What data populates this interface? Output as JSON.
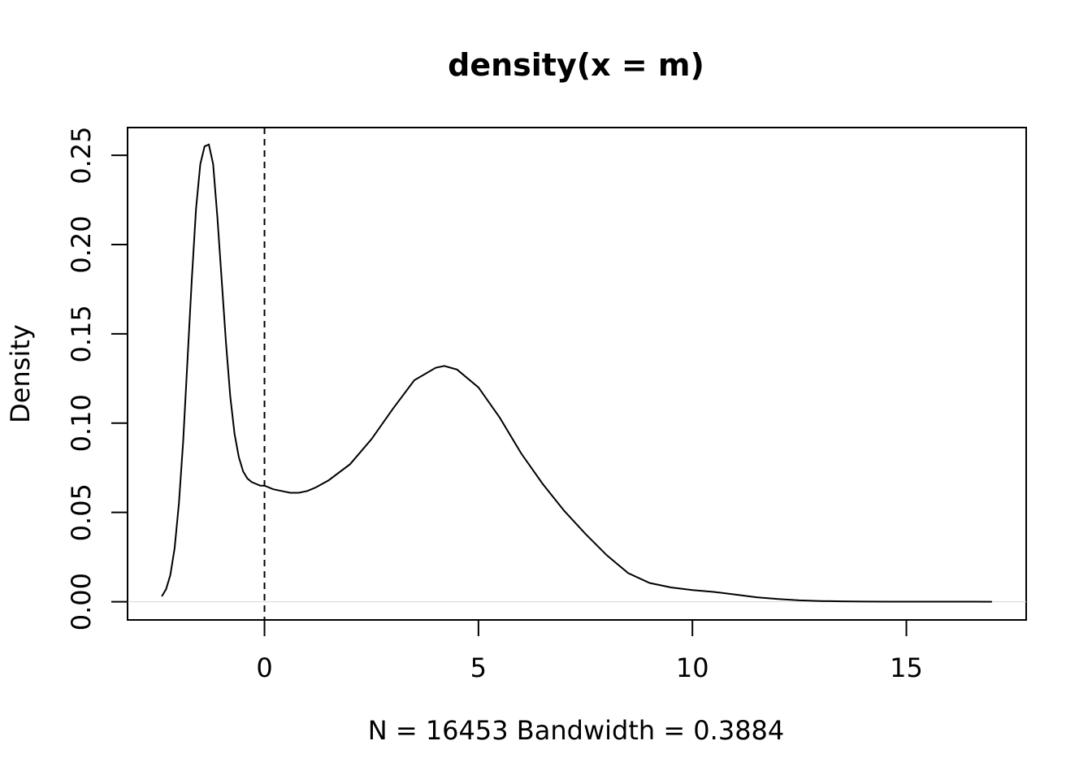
{
  "chart_data": {
    "type": "line",
    "title": "density(x = m)",
    "xlabel": "N = 16453   Bandwidth = 0.3884",
    "ylabel": "Density",
    "xlim": [
      -3.2,
      17.8
    ],
    "ylim": [
      -0.0102,
      0.2655
    ],
    "x_ticks": [
      0,
      5,
      10,
      15
    ],
    "x_tick_labels": [
      "0",
      "5",
      "10",
      "15"
    ],
    "y_ticks": [
      0.0,
      0.05,
      0.1,
      0.15,
      0.2,
      0.25
    ],
    "y_tick_labels": [
      "0.00",
      "0.05",
      "0.10",
      "0.15",
      "0.20",
      "0.25"
    ],
    "grid": false,
    "reference_lines": [
      {
        "type": "vertical",
        "x": 0,
        "style": "dashed"
      },
      {
        "type": "horizontal",
        "y": 0,
        "style": "solid-light"
      }
    ],
    "series": [
      {
        "color": "#000000",
        "x": [
          -2.4,
          -2.3,
          -2.2,
          -2.1,
          -2.0,
          -1.9,
          -1.8,
          -1.7,
          -1.6,
          -1.5,
          -1.4,
          -1.3,
          -1.2,
          -1.1,
          -1.0,
          -0.9,
          -0.8,
          -0.7,
          -0.6,
          -0.5,
          -0.4,
          -0.3,
          -0.2,
          -0.1,
          0.0,
          0.2,
          0.4,
          0.6,
          0.8,
          1.0,
          1.2,
          1.5,
          2.0,
          2.5,
          3.0,
          3.5,
          4.0,
          4.2,
          4.5,
          5.0,
          5.5,
          6.0,
          6.5,
          7.0,
          7.5,
          8.0,
          8.5,
          9.0,
          9.5,
          10.0,
          10.5,
          11.0,
          11.5,
          12.0,
          12.5,
          13.0,
          13.5,
          14.0,
          14.5,
          15.0,
          15.5,
          16.0,
          16.5,
          17.0
        ],
        "y": [
          0.003,
          0.007,
          0.015,
          0.03,
          0.055,
          0.09,
          0.135,
          0.18,
          0.22,
          0.245,
          0.255,
          0.256,
          0.245,
          0.215,
          0.18,
          0.145,
          0.115,
          0.094,
          0.081,
          0.073,
          0.069,
          0.067,
          0.066,
          0.065,
          0.065,
          0.063,
          0.062,
          0.061,
          0.061,
          0.062,
          0.064,
          0.068,
          0.077,
          0.091,
          0.108,
          0.124,
          0.131,
          0.132,
          0.13,
          0.12,
          0.103,
          0.083,
          0.066,
          0.051,
          0.038,
          0.026,
          0.016,
          0.0105,
          0.008,
          0.0065,
          0.0055,
          0.004,
          0.0025,
          0.0015,
          0.0008,
          0.0004,
          0.0002,
          0.0001,
          5e-05,
          3e-05,
          2e-05,
          1e-05,
          1e-05,
          0.0
        ]
      }
    ]
  }
}
